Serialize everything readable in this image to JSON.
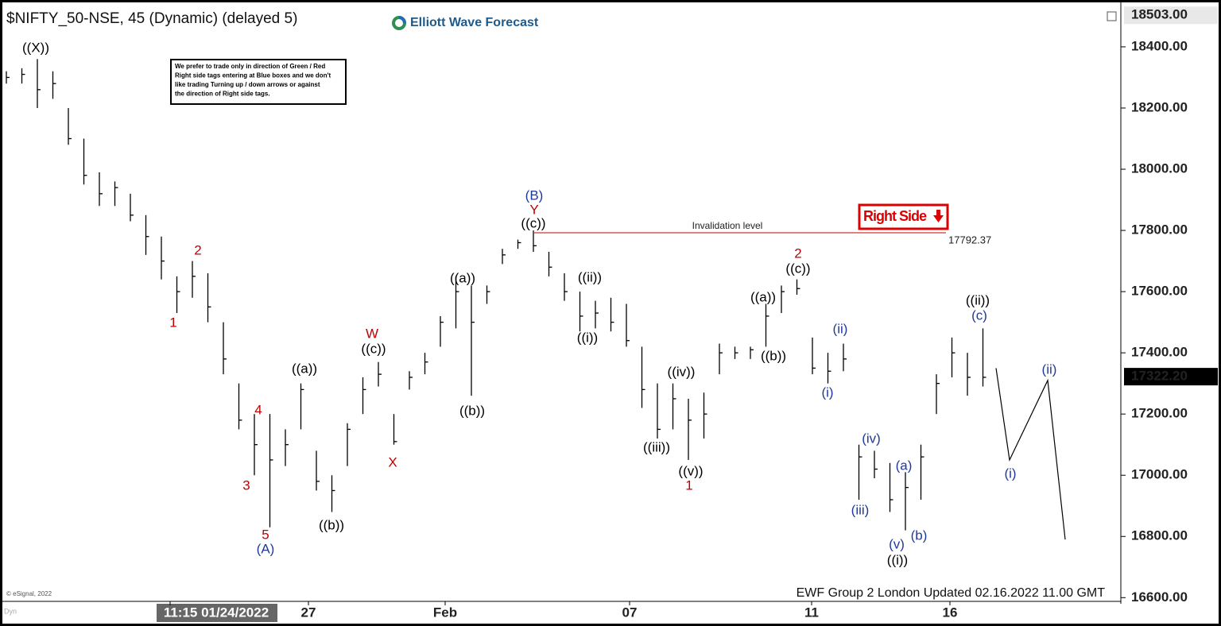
{
  "chart_data": {
    "type": "ohlc",
    "title": "$NIFTY_50-NSE, 45 (Dynamic) (delayed 5)",
    "brand": "Elliott Wave Forecast",
    "note": [
      "We prefer to trade only in direction of Green / Red",
      "Right side tags entering at Blue boxes and we don't",
      "like trading Turning up / down arrows or against",
      "the direction of Right side tags."
    ],
    "tag": "Right Side",
    "footer": "EWF Group 2 London  Updated 02.16.2022 11.00 GMT",
    "copyright": "© eSignal, 2022",
    "invalidation_label": "Invalidation level",
    "invalidation": 17792.37,
    "invalidation_color": "#c00000",
    "top_price": {
      "value": 18503,
      "label": "18503.00"
    },
    "last_price": {
      "value": 17322.2,
      "label": "17322.20"
    },
    "ylim": [
      16593,
      18553
    ],
    "yticks": [
      {
        "value": 16600,
        "label": "16600.00"
      },
      {
        "value": 16800,
        "label": "16800.00"
      },
      {
        "value": 17000,
        "label": "17000.00"
      },
      {
        "value": 17200,
        "label": "17200.00"
      },
      {
        "value": 17400,
        "label": "17400.00"
      },
      {
        "value": 17600,
        "label": "17600.00"
      },
      {
        "value": 17800,
        "label": "17800.00"
      },
      {
        "value": 18000,
        "label": "18000.00"
      },
      {
        "value": 18200,
        "label": "18200.00"
      },
      {
        "value": 18400,
        "label": "18400.00"
      }
    ],
    "xticks": [
      "11:15 01/24/2022",
      "27",
      "Feb",
      "07",
      "11",
      "16"
    ],
    "color": "#000000",
    "high": [
      18320,
      18330,
      18360,
      18320,
      18200,
      18100,
      17990,
      17960,
      17920,
      17850,
      17780,
      17650,
      17700,
      17660,
      17500,
      17300,
      17200,
      17200,
      17150,
      17300,
      17080,
      17000,
      17170,
      17320,
      17370,
      17200,
      17340,
      17400,
      17520,
      17650,
      17620,
      17620,
      17740,
      17770,
      17800,
      17730,
      17660,
      17600,
      17570,
      17580,
      17560,
      17420,
      17300,
      17300,
      17250,
      17270,
      17430,
      17420,
      17420,
      17560,
      17620,
      17640,
      17450,
      17400,
      17430,
      17100,
      17080,
      17040,
      17010,
      17100,
      17330,
      17450,
      17400,
      17480
    ],
    "low": [
      18280,
      18280,
      18200,
      18230,
      18080,
      17950,
      17880,
      17880,
      17830,
      17720,
      17640,
      17530,
      17580,
      17500,
      17330,
      17150,
      17000,
      16830,
      17030,
      17150,
      16950,
      16880,
      17030,
      17200,
      17290,
      17100,
      17280,
      17330,
      17420,
      17480,
      17260,
      17560,
      17690,
      17740,
      17730,
      17650,
      17570,
      17470,
      17480,
      17470,
      17420,
      17220,
      17120,
      17150,
      17050,
      17120,
      17330,
      17380,
      17380,
      17420,
      17530,
      17590,
      17330,
      17300,
      17340,
      16920,
      16990,
      16880,
      16820,
      16920,
      17200,
      17320,
      17260,
      17290
    ],
    "close": [
      18300,
      18310,
      18260,
      18280,
      18100,
      17980,
      17920,
      17940,
      17850,
      17780,
      17700,
      17600,
      17650,
      17550,
      17380,
      17180,
      17100,
      17050,
      17100,
      17280,
      16980,
      16950,
      17150,
      17280,
      17330,
      17110,
      17320,
      17370,
      17500,
      17600,
      17500,
      17600,
      17720,
      17760,
      17750,
      17680,
      17600,
      17520,
      17530,
      17500,
      17440,
      17280,
      17150,
      17250,
      17180,
      17200,
      17400,
      17400,
      17410,
      17520,
      17600,
      17610,
      17350,
      17340,
      17380,
      17060,
      17020,
      16920,
      16960,
      17060,
      17300,
      17400,
      17320,
      17320
    ],
    "projection": [
      17350,
      17050,
      17310,
      16790
    ],
    "annotations": [
      {
        "text": "((X))",
        "color": "#000000"
      },
      {
        "text": "2",
        "color": "#c00000"
      },
      {
        "text": "1",
        "color": "#c00000"
      },
      {
        "text": "4",
        "color": "#c00000"
      },
      {
        "text": "3",
        "color": "#c00000"
      },
      {
        "text": "5",
        "color": "#c00000"
      },
      {
        "text": "(A)",
        "color": "#1f3a9a"
      },
      {
        "text": "((a))",
        "color": "#000000"
      },
      {
        "text": "((b))",
        "color": "#000000"
      },
      {
        "text": "W",
        "color": "#c00000"
      },
      {
        "text": "((c))",
        "color": "#000000"
      },
      {
        "text": "X",
        "color": "#c00000"
      },
      {
        "text": "((a))",
        "color": "#000000"
      },
      {
        "text": "((b))",
        "color": "#000000"
      },
      {
        "text": "(B)",
        "color": "#1f3a9a"
      },
      {
        "text": "Y",
        "color": "#c00000"
      },
      {
        "text": "((c))",
        "color": "#000000"
      },
      {
        "text": "((ii))",
        "color": "#000000"
      },
      {
        "text": "((i))",
        "color": "#000000"
      },
      {
        "text": "((iv))",
        "color": "#000000"
      },
      {
        "text": "((iii))",
        "color": "#000000"
      },
      {
        "text": "((v))",
        "color": "#000000"
      },
      {
        "text": "1",
        "color": "#c00000"
      },
      {
        "text": "((a))",
        "color": "#000000"
      },
      {
        "text": "((b))",
        "color": "#000000"
      },
      {
        "text": "2",
        "color": "#c00000"
      },
      {
        "text": "((c))",
        "color": "#000000"
      },
      {
        "text": "(ii)",
        "color": "#1f3a9a"
      },
      {
        "text": "(i)",
        "color": "#1f3a9a"
      },
      {
        "text": "(iv)",
        "color": "#1f3a9a"
      },
      {
        "text": "(iii)",
        "color": "#1f3a9a"
      },
      {
        "text": "(a)",
        "color": "#1f3a9a"
      },
      {
        "text": "(v)",
        "color": "#1f3a9a"
      },
      {
        "text": "(b)",
        "color": "#1f3a9a"
      },
      {
        "text": "((i))",
        "color": "#000000"
      },
      {
        "text": "((ii))",
        "color": "#000000"
      },
      {
        "text": "(c)",
        "color": "#1f3a9a"
      },
      {
        "text": "(ii)",
        "color": "#1f3a9a"
      },
      {
        "text": "(i)",
        "color": "#1f3a9a"
      }
    ]
  }
}
